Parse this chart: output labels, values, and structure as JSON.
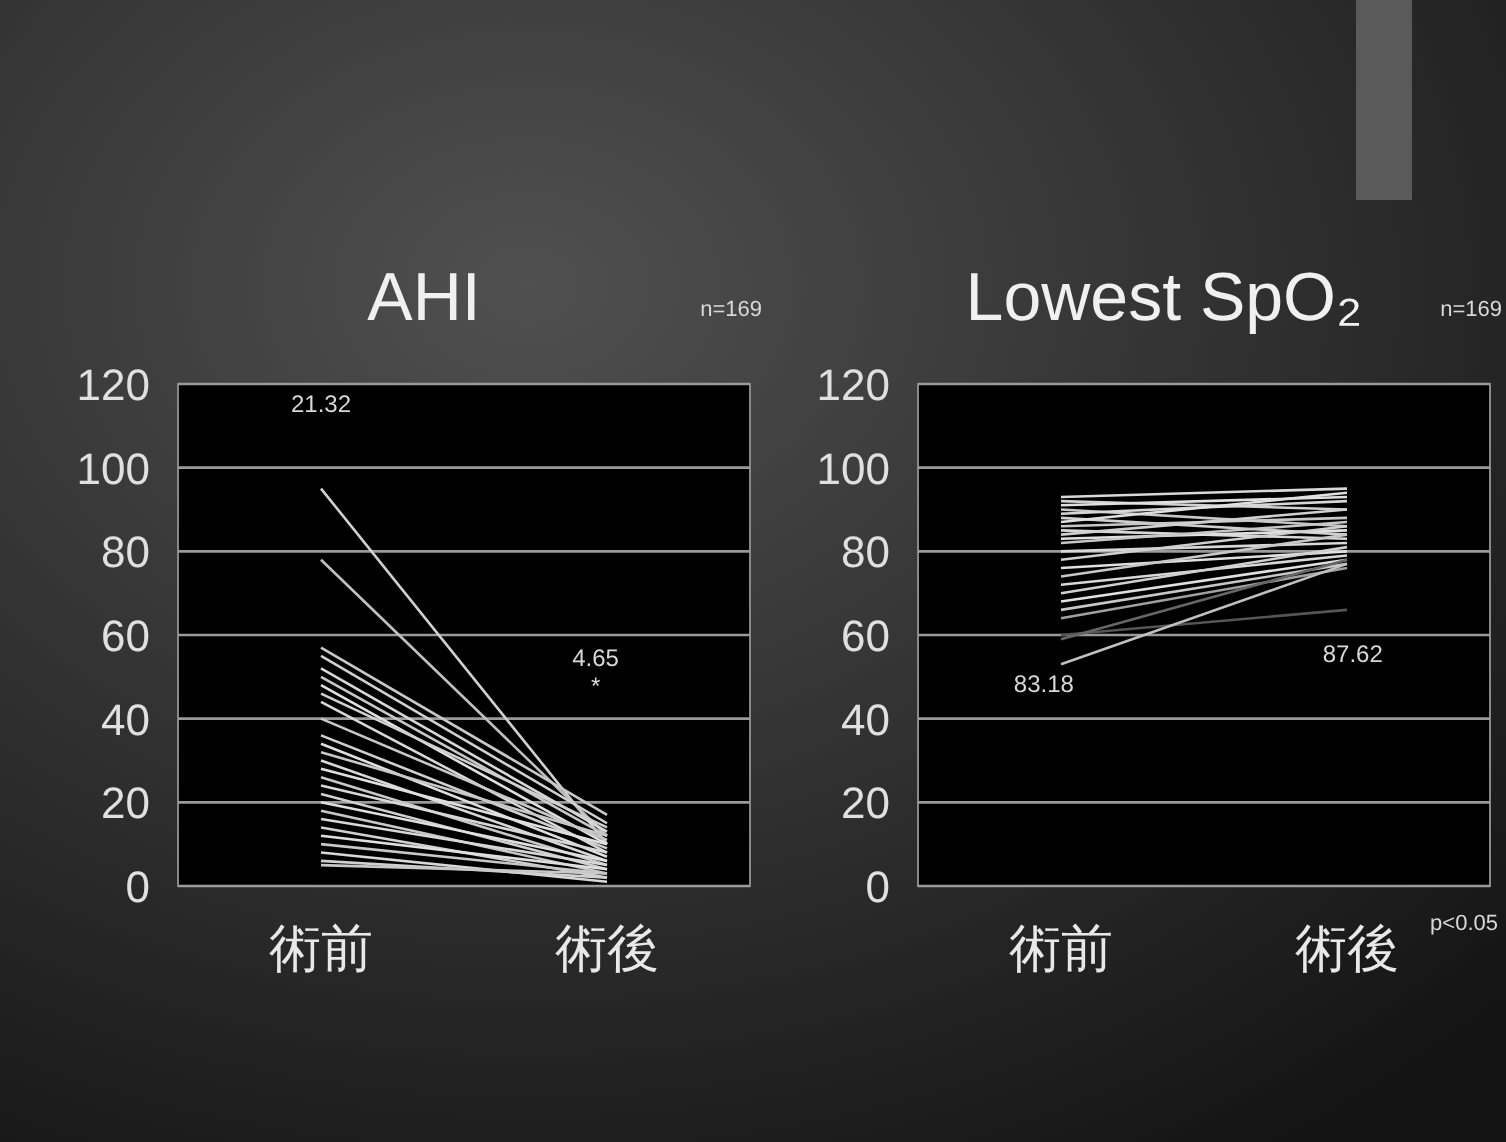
{
  "chart_data": [
    {
      "type": "line",
      "title": "AHI",
      "categories": [
        "術前",
        "術後"
      ],
      "ylim": [
        0,
        120
      ],
      "yticks": [
        0,
        20,
        40,
        60,
        80,
        100,
        120
      ],
      "grid": "y",
      "line_style": "solid",
      "annotations": [
        "n=169",
        "21.32",
        "4.65",
        "*"
      ],
      "series": [
        {
          "color": "#d0d0d0",
          "values": [
            95,
            10
          ]
        },
        {
          "color": "#c0c0c0",
          "values": [
            78,
            12
          ]
        },
        {
          "color": "#c8c8c8",
          "values": [
            57,
            17
          ]
        },
        {
          "color": "#d0d0d0",
          "values": [
            55,
            15
          ]
        },
        {
          "color": "#d8d8d8",
          "values": [
            52,
            13
          ]
        },
        {
          "color": "#c8c8c8",
          "values": [
            50,
            12
          ]
        },
        {
          "color": "#e0e0e0",
          "values": [
            48,
            10
          ]
        },
        {
          "color": "#d0d0d0",
          "values": [
            46,
            14
          ]
        },
        {
          "color": "#d8d8d8",
          "values": [
            44,
            8
          ]
        },
        {
          "color": "#c8c8c8",
          "values": [
            40,
            11
          ]
        },
        {
          "color": "#d0d0d0",
          "values": [
            36,
            9
          ]
        },
        {
          "color": "#e0e0e0",
          "values": [
            34,
            7
          ]
        },
        {
          "color": "#c8c8c8",
          "values": [
            32,
            12
          ]
        },
        {
          "color": "#d8d8d8",
          "values": [
            30,
            6
          ]
        },
        {
          "color": "#e0e0e0",
          "values": [
            28,
            10
          ]
        },
        {
          "color": "#c8c8c8",
          "values": [
            26,
            5
          ]
        },
        {
          "color": "#d8d8d8",
          "values": [
            24,
            8
          ]
        },
        {
          "color": "#d0d0d0",
          "values": [
            22,
            4
          ]
        },
        {
          "color": "#e0e0e0",
          "values": [
            20,
            6
          ]
        },
        {
          "color": "#c8c8c8",
          "values": [
            18,
            3
          ]
        },
        {
          "color": "#d8d8d8",
          "values": [
            16,
            5
          ]
        },
        {
          "color": "#d0d0d0",
          "values": [
            14,
            2
          ]
        },
        {
          "color": "#e0e0e0",
          "values": [
            12,
            4
          ]
        },
        {
          "color": "#c8c8c8",
          "values": [
            10,
            3
          ]
        },
        {
          "color": "#d8d8d8",
          "values": [
            8,
            1
          ]
        },
        {
          "color": "#d0d0d0",
          "values": [
            6,
            2
          ]
        },
        {
          "color": "#c8c8c8",
          "values": [
            5,
            3
          ]
        }
      ]
    },
    {
      "type": "line",
      "title": "Lowest SpO₂",
      "categories": [
        "術前",
        "術後"
      ],
      "ylim": [
        0,
        120
      ],
      "yticks": [
        0,
        20,
        40,
        60,
        80,
        100,
        120
      ],
      "grid": "y",
      "line_style": "solid",
      "annotations": [
        "n=169",
        "p<0.05",
        "83.18",
        "87.62"
      ],
      "series": [
        {
          "color": "#d8d8d8",
          "values": [
            93,
            95
          ]
        },
        {
          "color": "#d0d0d0",
          "values": [
            92,
            90
          ]
        },
        {
          "color": "#e0e0e0",
          "values": [
            91,
            93
          ]
        },
        {
          "color": "#c8c8c8",
          "values": [
            90,
            86
          ]
        },
        {
          "color": "#d8d8d8",
          "values": [
            89,
            92
          ]
        },
        {
          "color": "#d0d0d0",
          "values": [
            88,
            84
          ]
        },
        {
          "color": "#e0e0e0",
          "values": [
            87,
            94
          ]
        },
        {
          "color": "#c8c8c8",
          "values": [
            86,
            88
          ]
        },
        {
          "color": "#d8d8d8",
          "values": [
            85,
            83
          ]
        },
        {
          "color": "#d0d0d0",
          "values": [
            84,
            90
          ]
        },
        {
          "color": "#e0e0e0",
          "values": [
            83,
            85
          ]
        },
        {
          "color": "#c8c8c8",
          "values": [
            82,
            87
          ]
        },
        {
          "color": "#d8d8d8",
          "values": [
            80,
            82
          ]
        },
        {
          "color": "#d0d0d0",
          "values": [
            78,
            86
          ]
        },
        {
          "color": "#e0e0e0",
          "values": [
            76,
            80
          ]
        },
        {
          "color": "#c8c8c8",
          "values": [
            74,
            84
          ]
        },
        {
          "color": "#d8d8d8",
          "values": [
            72,
            79
          ]
        },
        {
          "color": "#d0d0d0",
          "values": [
            70,
            81
          ]
        },
        {
          "color": "#e0e0e0",
          "values": [
            68,
            78
          ]
        },
        {
          "color": "#c8c8c8",
          "values": [
            66,
            77
          ]
        },
        {
          "color": "#a0a0a0",
          "values": [
            64,
            76
          ]
        },
        {
          "color": "#555555",
          "values": [
            60,
            66
          ]
        },
        {
          "color": "#666666",
          "values": [
            59,
            78
          ]
        },
        {
          "color": "#c0c0c0",
          "values": [
            53,
            77
          ]
        }
      ]
    }
  ]
}
